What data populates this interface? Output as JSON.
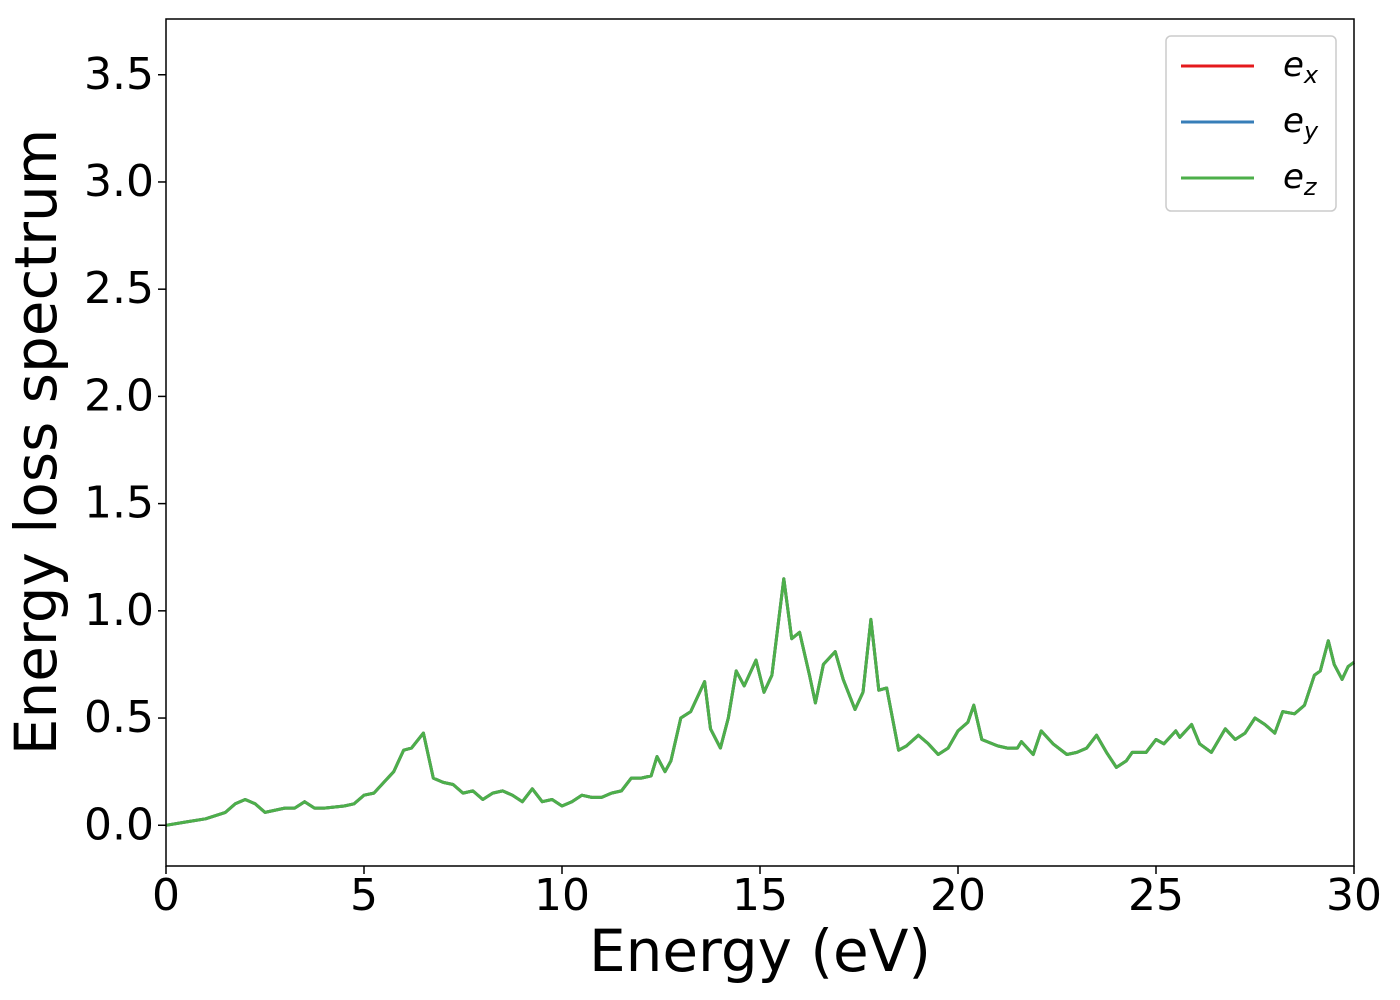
{
  "chart_data": {
    "type": "line",
    "xlabel": "Energy (eV)",
    "ylabel": "Energy loss spectrum",
    "x": [
      0,
      0.5,
      1.0,
      1.5,
      1.75,
      2.0,
      2.25,
      2.5,
      3.0,
      3.25,
      3.5,
      3.75,
      4.0,
      4.5,
      4.75,
      5.0,
      5.25,
      5.5,
      5.75,
      6.0,
      6.2,
      6.5,
      6.75,
      7.0,
      7.25,
      7.5,
      7.75,
      8.0,
      8.25,
      8.5,
      8.75,
      9.0,
      9.25,
      9.5,
      9.75,
      10.0,
      10.25,
      10.5,
      10.75,
      11.0,
      11.25,
      11.5,
      11.75,
      12.0,
      12.25,
      12.4,
      12.6,
      12.75,
      13.0,
      13.25,
      13.5,
      13.6,
      13.75,
      14.0,
      14.2,
      14.4,
      14.6,
      14.9,
      15.1,
      15.3,
      15.6,
      15.8,
      16.0,
      16.25,
      16.4,
      16.6,
      16.9,
      17.1,
      17.4,
      17.6,
      17.8,
      18.0,
      18.2,
      18.5,
      18.7,
      19.0,
      19.25,
      19.5,
      19.75,
      20.0,
      20.25,
      20.4,
      20.6,
      21.0,
      21.25,
      21.5,
      21.6,
      21.9,
      22.1,
      22.4,
      22.75,
      23.0,
      23.25,
      23.5,
      23.75,
      24.0,
      24.25,
      24.4,
      24.75,
      25.0,
      25.2,
      25.5,
      25.6,
      25.9,
      26.1,
      26.4,
      26.75,
      27.0,
      27.25,
      27.5,
      27.75,
      28.0,
      28.2,
      28.5,
      28.75,
      29.0,
      29.15,
      29.35,
      29.5,
      29.7,
      29.85,
      30.0
    ],
    "series": [
      {
        "name": "ex",
        "color": "#e41a1c",
        "values": [
          0.0,
          0.015,
          0.03,
          0.06,
          0.1,
          0.12,
          0.1,
          0.06,
          0.08,
          0.08,
          0.11,
          0.08,
          0.08,
          0.09,
          0.1,
          0.14,
          0.15,
          0.2,
          0.25,
          0.35,
          0.36,
          0.43,
          0.22,
          0.2,
          0.19,
          0.15,
          0.16,
          0.12,
          0.15,
          0.16,
          0.14,
          0.11,
          0.17,
          0.11,
          0.12,
          0.09,
          0.11,
          0.14,
          0.13,
          0.13,
          0.15,
          0.16,
          0.22,
          0.22,
          0.23,
          0.32,
          0.25,
          0.3,
          0.5,
          0.53,
          0.63,
          0.67,
          0.45,
          0.36,
          0.5,
          0.72,
          0.65,
          0.77,
          0.62,
          0.7,
          1.15,
          0.87,
          0.9,
          0.7,
          0.57,
          0.75,
          0.81,
          0.68,
          0.54,
          0.62,
          0.96,
          0.63,
          0.64,
          0.35,
          0.37,
          0.42,
          0.38,
          0.33,
          0.36,
          0.44,
          0.48,
          0.56,
          0.4,
          0.37,
          0.36,
          0.36,
          0.39,
          0.33,
          0.44,
          0.38,
          0.33,
          0.34,
          0.36,
          0.42,
          0.34,
          0.27,
          0.3,
          0.34,
          0.34,
          0.4,
          0.38,
          0.44,
          0.41,
          0.47,
          0.38,
          0.34,
          0.45,
          0.4,
          0.43,
          0.5,
          0.47,
          0.43,
          0.53,
          0.52,
          0.56,
          0.7,
          0.72,
          0.86,
          0.75,
          0.68,
          0.74,
          0.76
        ]
      },
      {
        "name": "ey",
        "color": "#377eb8",
        "values": [
          0.0,
          0.015,
          0.03,
          0.06,
          0.1,
          0.12,
          0.1,
          0.06,
          0.08,
          0.08,
          0.11,
          0.08,
          0.08,
          0.09,
          0.1,
          0.14,
          0.15,
          0.2,
          0.25,
          0.35,
          0.36,
          0.43,
          0.22,
          0.2,
          0.19,
          0.15,
          0.16,
          0.12,
          0.15,
          0.16,
          0.14,
          0.11,
          0.17,
          0.11,
          0.12,
          0.09,
          0.11,
          0.14,
          0.13,
          0.13,
          0.15,
          0.16,
          0.22,
          0.22,
          0.23,
          0.32,
          0.25,
          0.3,
          0.5,
          0.53,
          0.63,
          0.67,
          0.45,
          0.36,
          0.5,
          0.72,
          0.65,
          0.77,
          0.62,
          0.7,
          1.15,
          0.87,
          0.9,
          0.7,
          0.57,
          0.75,
          0.81,
          0.68,
          0.54,
          0.62,
          0.96,
          0.63,
          0.64,
          0.35,
          0.37,
          0.42,
          0.38,
          0.33,
          0.36,
          0.44,
          0.48,
          0.56,
          0.4,
          0.37,
          0.36,
          0.36,
          0.39,
          0.33,
          0.44,
          0.38,
          0.33,
          0.34,
          0.36,
          0.42,
          0.34,
          0.27,
          0.3,
          0.34,
          0.34,
          0.4,
          0.38,
          0.44,
          0.41,
          0.47,
          0.38,
          0.34,
          0.45,
          0.4,
          0.43,
          0.5,
          0.47,
          0.43,
          0.53,
          0.52,
          0.56,
          0.7,
          0.72,
          0.86,
          0.75,
          0.68,
          0.74,
          0.76
        ]
      },
      {
        "name": "ez",
        "color": "#4daf4a",
        "values": [
          0.0,
          0.015,
          0.03,
          0.06,
          0.1,
          0.12,
          0.1,
          0.06,
          0.08,
          0.08,
          0.11,
          0.08,
          0.08,
          0.09,
          0.1,
          0.14,
          0.15,
          0.2,
          0.25,
          0.35,
          0.36,
          0.43,
          0.22,
          0.2,
          0.19,
          0.15,
          0.16,
          0.12,
          0.15,
          0.16,
          0.14,
          0.11,
          0.17,
          0.11,
          0.12,
          0.09,
          0.11,
          0.14,
          0.13,
          0.13,
          0.15,
          0.16,
          0.22,
          0.22,
          0.23,
          0.32,
          0.25,
          0.3,
          0.5,
          0.53,
          0.63,
          0.67,
          0.45,
          0.36,
          0.5,
          0.72,
          0.65,
          0.77,
          0.62,
          0.7,
          1.15,
          0.87,
          0.9,
          0.7,
          0.57,
          0.75,
          0.81,
          0.68,
          0.54,
          0.62,
          0.96,
          0.63,
          0.64,
          0.35,
          0.37,
          0.42,
          0.38,
          0.33,
          0.36,
          0.44,
          0.48,
          0.56,
          0.4,
          0.37,
          0.36,
          0.36,
          0.39,
          0.33,
          0.44,
          0.38,
          0.33,
          0.34,
          0.36,
          0.42,
          0.34,
          0.27,
          0.3,
          0.34,
          0.34,
          0.4,
          0.38,
          0.44,
          0.41,
          0.47,
          0.38,
          0.34,
          0.45,
          0.4,
          0.43,
          0.5,
          0.47,
          0.43,
          0.53,
          0.52,
          0.56,
          0.7,
          0.72,
          0.86,
          0.75,
          0.68,
          0.74,
          0.76
        ]
      }
    ],
    "xlim": [
      0,
      30
    ],
    "xticks": [
      0,
      5,
      10,
      15,
      20,
      25,
      30
    ],
    "ylim": [
      -0.19,
      3.76
    ],
    "yticks": [
      {
        "value": 0,
        "label": "0.0"
      },
      0.5,
      {
        "value": 1,
        "label": "1.0"
      },
      1.5,
      {
        "value": 2,
        "label": "2.0"
      },
      2.5,
      {
        "value": 3,
        "label": "3.0"
      },
      3.5
    ],
    "grid": false,
    "legend": "upper right"
  }
}
